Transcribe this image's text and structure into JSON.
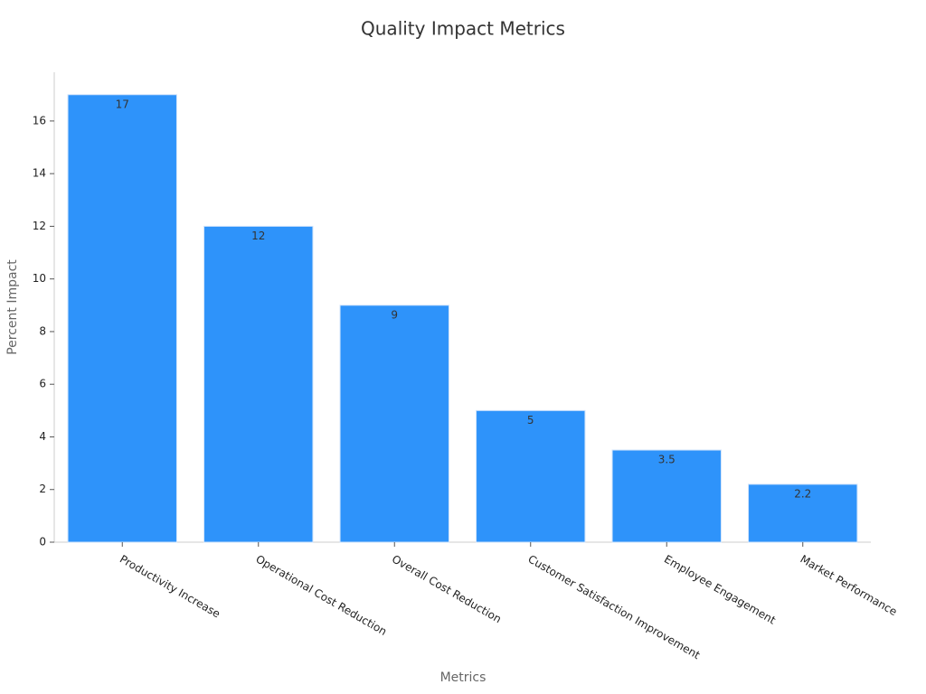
{
  "chart_data": {
    "type": "bar",
    "title": "Quality Impact Metrics",
    "x_label": "Metrics",
    "y_label": "Percent Impact",
    "categories": [
      "Productivity Increase",
      "Operational Cost Reduction",
      "Overall Cost Reduction",
      "Customer Satisfaction Improvement",
      "Employee Engagement",
      "Market Performance"
    ],
    "values": [
      17,
      12,
      9,
      5,
      3.5,
      2.2
    ],
    "color": "#2e93fa",
    "ylim": [
      0,
      17.85
    ],
    "yticks": [
      0,
      2,
      4,
      6,
      8,
      10,
      12,
      14,
      16
    ],
    "grid": false
  }
}
